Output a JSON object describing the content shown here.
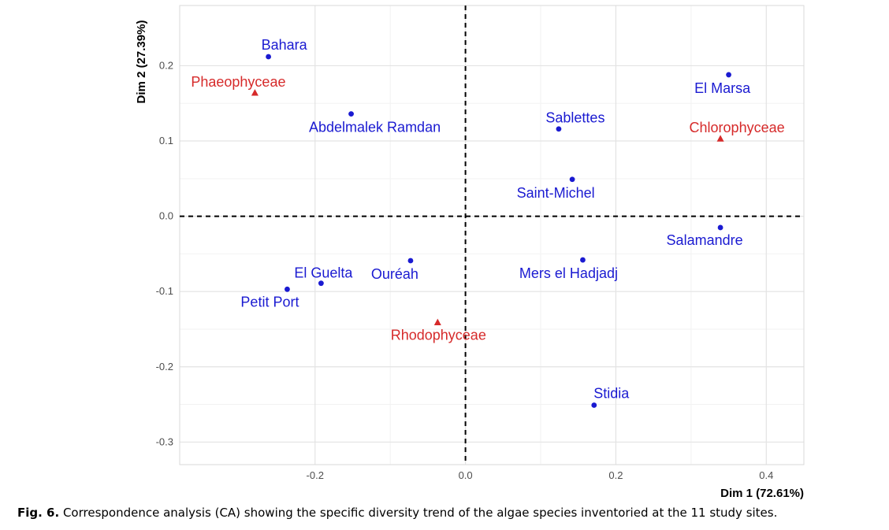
{
  "chart_data": {
    "type": "scatter",
    "xlabel": "Dim 1 (72.61%)",
    "ylabel": "Dim 2 (27.39%)",
    "xlim": [
      -0.38,
      0.45
    ],
    "ylim": [
      -0.33,
      0.28
    ],
    "x_ticks": [
      -0.2,
      0.0,
      0.2,
      0.4
    ],
    "x_tick_labels": [
      "-0.2",
      "0.0",
      "0.2",
      "0.4"
    ],
    "y_ticks": [
      -0.3,
      -0.2,
      -0.1,
      0.0,
      0.1,
      0.2
    ],
    "y_tick_labels": [
      "-0.3",
      "-0.2",
      "-0.1",
      "0.0",
      "0.1",
      "0.2"
    ],
    "grid": true,
    "reference_lines": {
      "x": 0.0,
      "y": 0.0,
      "style": "dashed"
    },
    "colors": {
      "sites": "#1a1ad1",
      "classes": "#d62a2a"
    },
    "series": [
      {
        "marker": "circle",
        "color": "#1a1ad1",
        "points": [
          {
            "label": "Bahara",
            "x": -0.262,
            "y": 0.212
          },
          {
            "label": "Abdelmalek Ramdan",
            "x": -0.152,
            "y": 0.136
          },
          {
            "label": "El Marsa",
            "x": 0.35,
            "y": 0.188
          },
          {
            "label": "Sablettes",
            "x": 0.124,
            "y": 0.116
          },
          {
            "label": "Saint-Michel",
            "x": 0.142,
            "y": 0.049
          },
          {
            "label": "Salamandre",
            "x": 0.339,
            "y": -0.015
          },
          {
            "label": "Mers el Hadjadj",
            "x": 0.156,
            "y": -0.058
          },
          {
            "label": "Ouréah",
            "x": -0.073,
            "y": -0.059
          },
          {
            "label": "El Guelta",
            "x": -0.192,
            "y": -0.089
          },
          {
            "label": "Petit Port",
            "x": -0.237,
            "y": -0.097
          },
          {
            "label": "Stidia",
            "x": 0.171,
            "y": -0.251
          }
        ]
      },
      {
        "marker": "triangle",
        "color": "#d62a2a",
        "points": [
          {
            "label": "Phaeophyceae",
            "x": -0.28,
            "y": 0.164
          },
          {
            "label": "Chlorophyceae",
            "x": 0.339,
            "y": 0.103
          },
          {
            "label": "Rhodophyceae",
            "x": -0.037,
            "y": -0.141
          }
        ]
      }
    ]
  },
  "caption": {
    "label": "Fig. 6.",
    "text": " Correspondence analysis (CA) showing the specific diversity trend of the algae species inventoried at the 11 study sites."
  }
}
